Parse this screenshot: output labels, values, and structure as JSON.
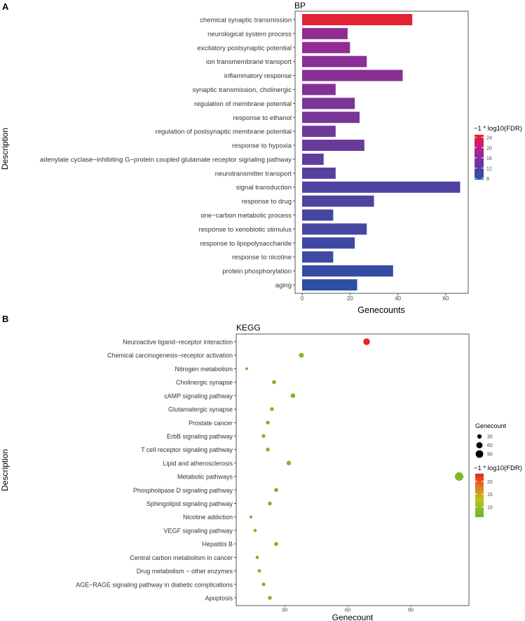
{
  "chart_data": [
    {
      "panel_label": "A",
      "type": "bar",
      "orientation": "horizontal",
      "title": "BP",
      "xlabel": "Genecounts",
      "ylabel": "Description",
      "xlim": [
        0,
        69
      ],
      "xticks": [
        0,
        20,
        40,
        60
      ],
      "grid": false,
      "categories": [
        "chemical synaptic transmission",
        "neurological system process",
        "excitatory postsynaptic potential",
        "ion transmembrane transport",
        "inflammatory response",
        "synaptic transmission, cholinergic",
        "regulation of membrane potential",
        "response to ethanol",
        "regulation of postsynaptic membrane potential",
        "response to hypoxia",
        "adenylate cyclase−inhibiting G−protein coupled glutamate receptor signaling pathway",
        "neurotransmitter transport",
        "signal transduction",
        "response to drug",
        "one−carbon metabolic process",
        "response to xenobiotic stimulus",
        "response to lipopolysaccharide",
        "response to nicotine",
        "protein phosphorylation",
        "aging"
      ],
      "values": [
        46,
        19,
        20,
        27,
        42,
        14,
        22,
        24,
        14,
        26,
        9,
        14,
        66,
        30,
        13,
        27,
        22,
        13,
        38,
        23
      ],
      "color_values": [
        24,
        14,
        14,
        13.5,
        13.5,
        13,
        12.5,
        12.5,
        12,
        11.5,
        11,
        10.5,
        10,
        10,
        9.5,
        9.5,
        9,
        9,
        8.5,
        8
      ],
      "legend": {
        "title": "−1 * log10(FDR)",
        "ticks": [
          24,
          20,
          16,
          12,
          8
        ],
        "range": [
          7.5,
          25
        ],
        "placement": "right",
        "colors": {
          "low": "#2352a6",
          "mid": "#b91f8c",
          "high": "#e9232a"
        }
      }
    },
    {
      "panel_label": "B",
      "type": "scatter",
      "title": "KEGG",
      "xlabel": "Genecount",
      "ylabel": "Description",
      "xlim": [
        7,
        118
      ],
      "xticks": [
        30,
        60,
        90
      ],
      "grid": false,
      "categories": [
        "Neuroactive ligand−receptor interaction",
        "Chemical carcinogenesis−receptor activation",
        "Nitrogen metabolism",
        "Cholinergic synapse",
        "cAMP signaling pathway",
        "Glutamatergic synapse",
        "Prostate cancer",
        "ErbB signaling pathway",
        "T cell receptor signaling pathway",
        "Lipid and atherosclerosis",
        "Metabolic pathways",
        "Phospholipase D signaling pathway",
        "Sphingolipid signaling pathway",
        "Nicotine addiction",
        "VEGF signaling pathway",
        "Hepatitis B",
        "Central carbon metabolism in cancer",
        "Drug metabolism − other enzymes",
        "AGE−RAGE signaling pathway in diabetic complications",
        "Apoptosis"
      ],
      "values": [
        69,
        38,
        12,
        25,
        34,
        24,
        22,
        20,
        22,
        32,
        113,
        26,
        23,
        14,
        16,
        26,
        17,
        18,
        20,
        23
      ],
      "color_values": [
        23,
        9,
        7,
        8,
        8,
        8,
        7.5,
        7.5,
        7.5,
        8,
        8,
        7.5,
        7.5,
        7,
        7,
        7.5,
        7,
        7,
        7,
        7
      ],
      "size_legend": {
        "title": "Genecount",
        "values": [
          30,
          60,
          90
        ]
      },
      "legend": {
        "title": "−1 * log10(FDR)",
        "ticks": [
          20,
          15,
          10
        ],
        "range": [
          6,
          23
        ],
        "placement": "right",
        "colors": {
          "low": "#6ab52e",
          "mid": "#b5c81c",
          "high": "#ec2224"
        }
      }
    }
  ]
}
